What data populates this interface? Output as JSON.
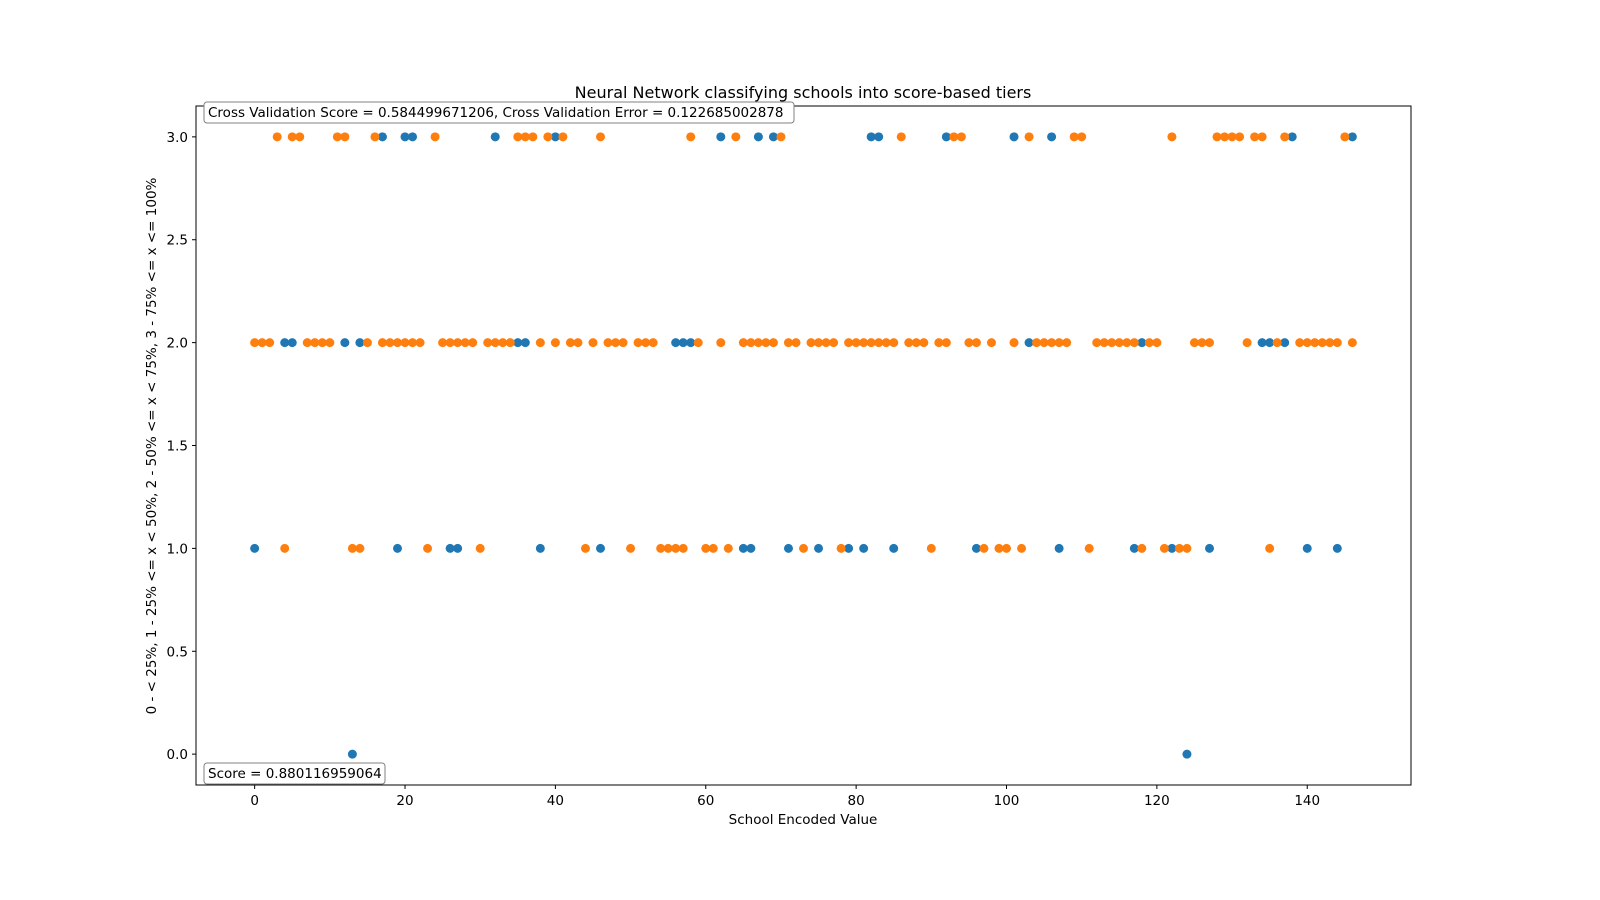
{
  "chart_data": {
    "type": "scatter",
    "title": "Neural Network classifying schools into score-based tiers",
    "xlabel": "School Encoded Value",
    "ylabel": "0 - < 25%, 1 - 25% <= x < 50%, 2 - 50% <= x < 75%, 3 - 75% <= x <= 100%",
    "xlim": [
      -7.8,
      153.8
    ],
    "ylim": [
      -0.15,
      3.15
    ],
    "xticks": [
      0,
      20,
      40,
      60,
      80,
      100,
      120,
      140
    ],
    "yticks": [
      "0.0",
      "0.5",
      "1.0",
      "1.5",
      "2.0",
      "2.5",
      "3.0"
    ],
    "grid": false,
    "annotations": {
      "cv": "Cross Validation Score = 0.584499671206, Cross Validation Error = 0.122685002878",
      "score": "Score = 0.880116959064"
    },
    "series": [
      {
        "color": "#1f77b4",
        "points": [
          [
            0,
            1
          ],
          [
            4,
            2
          ],
          [
            5,
            2
          ],
          [
            12,
            2
          ],
          [
            13,
            0
          ],
          [
            14,
            2
          ],
          [
            17,
            3
          ],
          [
            19,
            1
          ],
          [
            20,
            3
          ],
          [
            21,
            3
          ],
          [
            26,
            1
          ],
          [
            27,
            1
          ],
          [
            32,
            3
          ],
          [
            35,
            2
          ],
          [
            36,
            2
          ],
          [
            38,
            1
          ],
          [
            40,
            3
          ],
          [
            46,
            1
          ],
          [
            56,
            2
          ],
          [
            57,
            2
          ],
          [
            58,
            2
          ],
          [
            62,
            3
          ],
          [
            65,
            1
          ],
          [
            66,
            1
          ],
          [
            67,
            3
          ],
          [
            69,
            3
          ],
          [
            71,
            1
          ],
          [
            75,
            1
          ],
          [
            79,
            1
          ],
          [
            81,
            1
          ],
          [
            82,
            3
          ],
          [
            83,
            3
          ],
          [
            85,
            1
          ],
          [
            92,
            3
          ],
          [
            96,
            1
          ],
          [
            101,
            3
          ],
          [
            103,
            2
          ],
          [
            106,
            3
          ],
          [
            107,
            1
          ],
          [
            117,
            1
          ],
          [
            118,
            2
          ],
          [
            122,
            1
          ],
          [
            124,
            0
          ],
          [
            127,
            1
          ],
          [
            134,
            2
          ],
          [
            135,
            2
          ],
          [
            137,
            2
          ],
          [
            138,
            3
          ],
          [
            140,
            1
          ],
          [
            144,
            1
          ],
          [
            146,
            3
          ]
        ]
      },
      {
        "color": "#ff7f0e",
        "points": [
          [
            3,
            3
          ],
          [
            5,
            3
          ],
          [
            6,
            3
          ],
          [
            11,
            3
          ],
          [
            12,
            3
          ],
          [
            16,
            3
          ],
          [
            24,
            3
          ],
          [
            35,
            3
          ],
          [
            36,
            3
          ],
          [
            37,
            3
          ],
          [
            39,
            3
          ],
          [
            41,
            3
          ],
          [
            46,
            3
          ],
          [
            58,
            3
          ],
          [
            64,
            3
          ],
          [
            70,
            3
          ],
          [
            86,
            3
          ],
          [
            93,
            3
          ],
          [
            94,
            3
          ],
          [
            103,
            3
          ],
          [
            109,
            3
          ],
          [
            110,
            3
          ],
          [
            122,
            3
          ],
          [
            128,
            3
          ],
          [
            129,
            3
          ],
          [
            130,
            3
          ],
          [
            131,
            3
          ],
          [
            133,
            3
          ],
          [
            134,
            3
          ],
          [
            137,
            3
          ],
          [
            145,
            3
          ],
          [
            0,
            2
          ],
          [
            1,
            2
          ],
          [
            2,
            2
          ],
          [
            7,
            2
          ],
          [
            8,
            2
          ],
          [
            9,
            2
          ],
          [
            10,
            2
          ],
          [
            15,
            2
          ],
          [
            17,
            2
          ],
          [
            18,
            2
          ],
          [
            19,
            2
          ],
          [
            20,
            2
          ],
          [
            21,
            2
          ],
          [
            22,
            2
          ],
          [
            25,
            2
          ],
          [
            26,
            2
          ],
          [
            27,
            2
          ],
          [
            28,
            2
          ],
          [
            29,
            2
          ],
          [
            31,
            2
          ],
          [
            32,
            2
          ],
          [
            33,
            2
          ],
          [
            34,
            2
          ],
          [
            38,
            2
          ],
          [
            40,
            2
          ],
          [
            42,
            2
          ],
          [
            43,
            2
          ],
          [
            45,
            2
          ],
          [
            47,
            2
          ],
          [
            48,
            2
          ],
          [
            49,
            2
          ],
          [
            51,
            2
          ],
          [
            52,
            2
          ],
          [
            53,
            2
          ],
          [
            59,
            2
          ],
          [
            62,
            2
          ],
          [
            65,
            2
          ],
          [
            66,
            2
          ],
          [
            67,
            2
          ],
          [
            68,
            2
          ],
          [
            69,
            2
          ],
          [
            71,
            2
          ],
          [
            72,
            2
          ],
          [
            74,
            2
          ],
          [
            75,
            2
          ],
          [
            76,
            2
          ],
          [
            77,
            2
          ],
          [
            79,
            2
          ],
          [
            80,
            2
          ],
          [
            81,
            2
          ],
          [
            82,
            2
          ],
          [
            83,
            2
          ],
          [
            84,
            2
          ],
          [
            85,
            2
          ],
          [
            87,
            2
          ],
          [
            88,
            2
          ],
          [
            89,
            2
          ],
          [
            91,
            2
          ],
          [
            92,
            2
          ],
          [
            95,
            2
          ],
          [
            96,
            2
          ],
          [
            98,
            2
          ],
          [
            101,
            2
          ],
          [
            104,
            2
          ],
          [
            105,
            2
          ],
          [
            106,
            2
          ],
          [
            107,
            2
          ],
          [
            108,
            2
          ],
          [
            112,
            2
          ],
          [
            113,
            2
          ],
          [
            114,
            2
          ],
          [
            115,
            2
          ],
          [
            116,
            2
          ],
          [
            117,
            2
          ],
          [
            119,
            2
          ],
          [
            120,
            2
          ],
          [
            125,
            2
          ],
          [
            126,
            2
          ],
          [
            127,
            2
          ],
          [
            132,
            2
          ],
          [
            136,
            2
          ],
          [
            139,
            2
          ],
          [
            140,
            2
          ],
          [
            141,
            2
          ],
          [
            142,
            2
          ],
          [
            143,
            2
          ],
          [
            144,
            2
          ],
          [
            146,
            2
          ],
          [
            4,
            1
          ],
          [
            13,
            1
          ],
          [
            14,
            1
          ],
          [
            23,
            1
          ],
          [
            30,
            1
          ],
          [
            44,
            1
          ],
          [
            50,
            1
          ],
          [
            54,
            1
          ],
          [
            55,
            1
          ],
          [
            56,
            1
          ],
          [
            57,
            1
          ],
          [
            60,
            1
          ],
          [
            61,
            1
          ],
          [
            63,
            1
          ],
          [
            73,
            1
          ],
          [
            78,
            1
          ],
          [
            90,
            1
          ],
          [
            97,
            1
          ],
          [
            99,
            1
          ],
          [
            100,
            1
          ],
          [
            102,
            1
          ],
          [
            111,
            1
          ],
          [
            118,
            1
          ],
          [
            121,
            1
          ],
          [
            123,
            1
          ],
          [
            124,
            1
          ],
          [
            135,
            1
          ]
        ]
      }
    ]
  }
}
